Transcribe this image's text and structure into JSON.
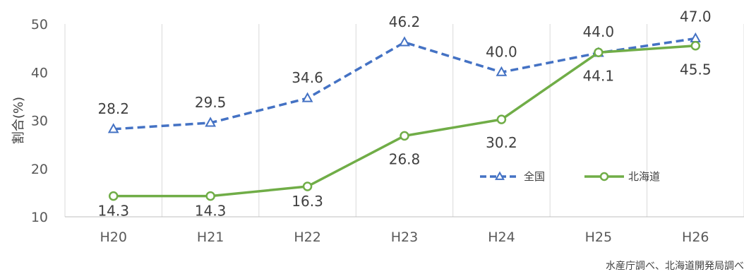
{
  "chart_data": {
    "type": "line",
    "categories": [
      "H20",
      "H21",
      "H22",
      "H23",
      "H24",
      "H25",
      "H26"
    ],
    "series": [
      {
        "name": "全国",
        "values": [
          28.2,
          29.5,
          34.6,
          46.2,
          40.0,
          44.0,
          47.0
        ],
        "labels": [
          "28.2",
          "29.5",
          "34.6",
          "46.2",
          "40.0",
          "44.0",
          "47.0"
        ],
        "color": "#4472C4",
        "style": "dashed",
        "marker": "triangle"
      },
      {
        "name": "北海道",
        "values": [
          14.3,
          14.3,
          16.3,
          26.8,
          30.2,
          44.1,
          45.5
        ],
        "labels": [
          "14.3",
          "14.3",
          "16.3",
          "26.8",
          "30.2",
          "44.1",
          "45.5"
        ],
        "color": "#70AD47",
        "style": "solid",
        "marker": "circle"
      }
    ],
    "ylabel": "割合(%)",
    "ylim": [
      10,
      50
    ],
    "yticks": [
      "10",
      "20",
      "30",
      "40",
      "50"
    ],
    "grid": "vertical",
    "legend": "center-right",
    "source": "水産庁調べ、北海道開発局調べ"
  }
}
